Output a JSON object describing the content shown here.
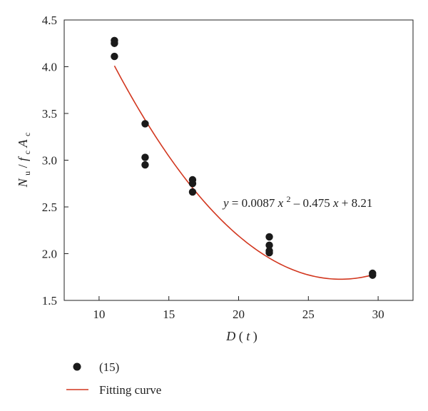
{
  "chart_data": {
    "type": "scatter",
    "title": "",
    "xlabel": {
      "main": "D",
      "open": " (",
      "var": "t",
      "close": ")"
    },
    "ylabel": {
      "n": "N",
      "n_sub": "u",
      "slash": "/",
      "f": "f",
      "f_sub": "c",
      "a": "A",
      "a_sub": "c"
    },
    "xlim": [
      7.5,
      32.5
    ],
    "ylim": [
      1.5,
      4.5
    ],
    "x_ticks": [
      10,
      15,
      20,
      25,
      30
    ],
    "y_ticks": [
      1.5,
      2.0,
      2.5,
      3.0,
      3.5,
      4.0,
      4.5
    ],
    "x_tick_labels": [
      "10",
      "15",
      "20",
      "25",
      "30"
    ],
    "y_tick_labels": [
      "1.5",
      "2.0",
      "2.5",
      "3.0",
      "3.5",
      "4.0",
      "4.5"
    ],
    "grid": false,
    "legend_position": "bottom-left",
    "series": [
      {
        "name": "(15)",
        "kind": "points",
        "color": "#1a1a1a",
        "points": [
          [
            11.1,
            4.28
          ],
          [
            11.1,
            4.25
          ],
          [
            11.1,
            4.11
          ],
          [
            13.3,
            3.39
          ],
          [
            13.3,
            3.03
          ],
          [
            13.3,
            2.95
          ],
          [
            16.7,
            2.79
          ],
          [
            16.7,
            2.75
          ],
          [
            16.7,
            2.66
          ],
          [
            22.2,
            2.18
          ],
          [
            22.2,
            2.09
          ],
          [
            22.2,
            2.03
          ],
          [
            22.2,
            2.01
          ],
          [
            29.6,
            1.79
          ],
          [
            29.6,
            1.77
          ]
        ]
      },
      {
        "name": "Fitting curve",
        "kind": "curve",
        "color": "#d2371f",
        "x_range": [
          11.1,
          29.6
        ],
        "coefficients": {
          "a": 0.0087,
          "b": -0.475,
          "c": 8.21
        }
      }
    ],
    "annotation": {
      "y": "y",
      "equals": " = 0.0087",
      "x1": "x",
      "exp": "2",
      "mid": " – 0.475",
      "x2": "x",
      "tail": " + 8.21"
    }
  }
}
